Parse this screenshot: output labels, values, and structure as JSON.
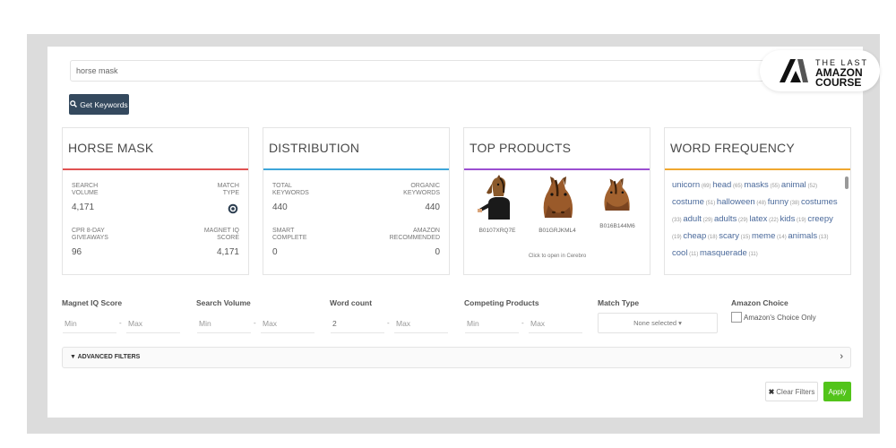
{
  "search": {
    "value": "horse mask"
  },
  "logo": {
    "line1": "THE LAST",
    "line2": "AMAZON",
    "line3": "COURSE"
  },
  "get_keywords": {
    "label": "Get Keywords",
    "icon": "search-icon"
  },
  "cards": {
    "keyword": {
      "title": "HORSE MASK",
      "accent": "#e05252",
      "search_volume_label": "SEARCH VOLUME",
      "search_volume": "4,171",
      "match_type_label": "MATCH TYPE",
      "match_type_icon": "target-icon",
      "giveaways_label": "CPR 8-DAY GIVEAWAYS",
      "giveaways": "96",
      "iq_label": "MAGNET IQ SCORE",
      "iq": "4,171"
    },
    "distribution": {
      "title": "DISTRIBUTION",
      "accent": "#3ea6d9",
      "total_label": "TOTAL KEYWORDS",
      "total": "440",
      "organic_label": "ORGANIC KEYWORDS",
      "organic": "440",
      "smart_label": "SMART COMPLETE",
      "smart": "0",
      "amazon_label": "AMAZON RECOMMENDED",
      "amazon": "0"
    },
    "top_products": {
      "title": "TOP PRODUCTS",
      "accent": "#9b4fd1",
      "products": [
        {
          "asin": "B0107XRQ7E"
        },
        {
          "asin": "B01GRJKML4"
        },
        {
          "asin": "B016B144M6"
        }
      ],
      "cerebro_text": "Click to open in Cerebro"
    },
    "word_frequency": {
      "title": "WORD FREQUENCY",
      "accent": "#f0a830",
      "words": [
        {
          "word": "unicorn",
          "count": "(69)"
        },
        {
          "word": "head",
          "count": "(65)"
        },
        {
          "word": "masks",
          "count": "(55)"
        },
        {
          "word": "animal",
          "count": "(52)"
        },
        {
          "word": "costume",
          "count": "(51)"
        },
        {
          "word": "halloween",
          "count": "(48)"
        },
        {
          "word": "funny",
          "count": "(38)"
        },
        {
          "word": "costumes",
          "count": "(33)"
        },
        {
          "word": "adult",
          "count": "(29)"
        },
        {
          "word": "adults",
          "count": "(29)"
        },
        {
          "word": "latex",
          "count": "(22)"
        },
        {
          "word": "kids",
          "count": "(19)"
        },
        {
          "word": "creepy",
          "count": "(19)"
        },
        {
          "word": "cheap",
          "count": "(18)"
        },
        {
          "word": "scary",
          "count": "(15)"
        },
        {
          "word": "meme",
          "count": "(14)"
        },
        {
          "word": "animals",
          "count": "(13)"
        },
        {
          "word": "cool",
          "count": "(11)"
        },
        {
          "word": "masquerade",
          "count": "(11)"
        }
      ]
    }
  },
  "filters": {
    "magnet_iq": {
      "label": "Magnet IQ Score",
      "min": "Min",
      "max": "Max"
    },
    "search_volume": {
      "label": "Search Volume",
      "min": "Min",
      "max": "Max"
    },
    "word_count": {
      "label": "Word count",
      "min_value": "2",
      "max": "Max"
    },
    "competing": {
      "label": "Competing Products",
      "min": "Min",
      "max": "Max"
    },
    "match_type": {
      "label": "Match Type",
      "selected": "None selected ▾"
    },
    "amazon_choice": {
      "label": "Amazon Choice",
      "checkbox_label": "Amazon's Choice Only"
    },
    "dash": "-"
  },
  "advanced": {
    "label": "▼ ADVANCED FILTERS",
    "chevron": "›"
  },
  "actions": {
    "clear": "Clear Filters",
    "clear_icon": "✖",
    "apply": "Apply"
  }
}
